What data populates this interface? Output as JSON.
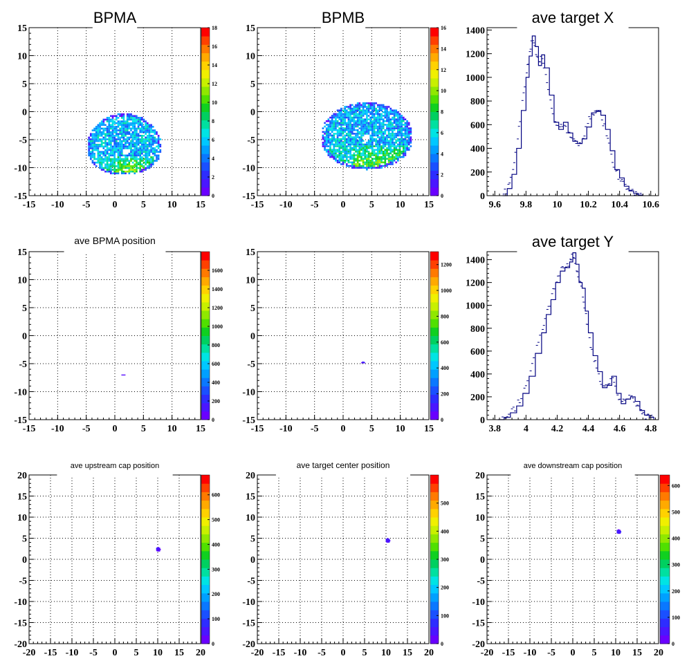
{
  "chart_data": [
    {
      "id": "bpma",
      "type": "heatmap",
      "title": "BPMA",
      "xlim": [
        -15,
        15
      ],
      "ylim": [
        -15,
        15
      ],
      "xticks": [
        -15,
        -10,
        -5,
        0,
        5,
        10,
        15
      ],
      "yticks": [
        -15,
        -10,
        -5,
        0,
        5,
        10,
        15
      ],
      "zlim": [
        0,
        18
      ],
      "zticks": [
        0,
        2,
        4,
        6,
        8,
        10,
        12,
        14,
        16,
        18
      ],
      "grid": true,
      "blob": {
        "shape": "dome",
        "cx": 1.5,
        "cy": -6.5,
        "rx": 6.5,
        "ry_top": 6.0,
        "ry_bottom": 5.0,
        "hole": [
          1.8,
          -7.3
        ]
      }
    },
    {
      "id": "bpmb",
      "type": "heatmap",
      "title": "BPMB",
      "xlim": [
        -15,
        15
      ],
      "ylim": [
        -15,
        15
      ],
      "xticks": [
        -15,
        -10,
        -5,
        0,
        5,
        10,
        15
      ],
      "yticks": [
        -15,
        -10,
        -5,
        0,
        5,
        10,
        15
      ],
      "zlim": [
        0,
        16
      ],
      "zticks": [
        0,
        2,
        4,
        6,
        8,
        10,
        12,
        14,
        16
      ],
      "grid": true,
      "blob": {
        "shape": "dome",
        "cx": 4.0,
        "cy": -4.5,
        "rx": 8.0,
        "ry_top": 6.0,
        "ry_bottom": 6.0,
        "hole": [
          3.8,
          -4.9
        ]
      }
    },
    {
      "id": "target-x",
      "type": "histogram",
      "title": "ave target X",
      "xlim": [
        9.55,
        10.65
      ],
      "ylim": [
        0,
        1420
      ],
      "xticks": [
        9.6,
        9.8,
        10,
        10.2,
        10.4,
        10.6
      ],
      "xtick_labels": [
        "9.6",
        "9.8",
        "10",
        "10.2",
        "10.4",
        "10.6"
      ],
      "yticks": [
        0,
        200,
        400,
        600,
        800,
        1000,
        1200,
        1400
      ],
      "points": [
        [
          9.65,
          0
        ],
        [
          9.68,
          60
        ],
        [
          9.71,
          180
        ],
        [
          9.74,
          400
        ],
        [
          9.77,
          720
        ],
        [
          9.8,
          1000
        ],
        [
          9.82,
          1180
        ],
        [
          9.84,
          1350
        ],
        [
          9.86,
          1260
        ],
        [
          9.88,
          1100
        ],
        [
          9.9,
          1190
        ],
        [
          9.92,
          1080
        ],
        [
          9.95,
          850
        ],
        [
          9.98,
          620
        ],
        [
          10.01,
          560
        ],
        [
          10.04,
          620
        ],
        [
          10.07,
          530
        ],
        [
          10.1,
          460
        ],
        [
          10.13,
          440
        ],
        [
          10.16,
          480
        ],
        [
          10.19,
          580
        ],
        [
          10.22,
          700
        ],
        [
          10.25,
          720
        ],
        [
          10.28,
          680
        ],
        [
          10.31,
          560
        ],
        [
          10.34,
          380
        ],
        [
          10.37,
          220
        ],
        [
          10.4,
          150
        ],
        [
          10.43,
          80
        ],
        [
          10.46,
          40
        ],
        [
          10.49,
          20
        ],
        [
          10.52,
          5
        ],
        [
          10.55,
          0
        ]
      ]
    },
    {
      "id": "bpma-pos",
      "type": "heatmap",
      "title": "ave BPMA position",
      "xlim": [
        -15,
        15
      ],
      "ylim": [
        -15,
        15
      ],
      "xticks": [
        -15,
        -10,
        -5,
        0,
        5,
        10,
        15
      ],
      "yticks": [
        -15,
        -10,
        -5,
        0,
        5,
        10,
        15
      ],
      "zlim": [
        0,
        1800
      ],
      "zticks": [
        0,
        200,
        400,
        600,
        800,
        1000,
        1200,
        1400,
        1600
      ],
      "zlabels": [
        "0",
        "200",
        "400",
        "600",
        "800",
        "1000",
        "1200",
        "1400",
        "1600"
      ],
      "grid": true,
      "blob": {
        "shape": "spot",
        "cx": 1.4,
        "cy": -7.1,
        "rx": 0.4,
        "ry_top": 0.12,
        "ry_bottom": 0.12
      }
    },
    {
      "id": "bpmb-pos",
      "type": "heatmap",
      "title": "",
      "xlim": [
        -15,
        15
      ],
      "ylim": [
        -15,
        15
      ],
      "xticks": [
        -15,
        -10,
        -5,
        0,
        5,
        10,
        15
      ],
      "yticks": [
        -15,
        -10,
        -5,
        0,
        5,
        10,
        15
      ],
      "zlim": [
        0,
        1300
      ],
      "zticks": [
        0,
        200,
        400,
        600,
        800,
        1000,
        1200
      ],
      "zlabels": [
        "0",
        "200",
        "400",
        "600",
        "800",
        "1000",
        "1200"
      ],
      "grid": true,
      "blob": {
        "shape": "spot",
        "cx": 3.4,
        "cy": -4.9,
        "rx": 0.4,
        "ry_top": 0.15,
        "ry_bottom": 0.15
      }
    },
    {
      "id": "target-y",
      "type": "histogram",
      "title": "ave target Y",
      "xlim": [
        3.75,
        4.85
      ],
      "ylim": [
        0,
        1470
      ],
      "xticks": [
        3.8,
        4,
        4.2,
        4.4,
        4.6,
        4.8
      ],
      "xtick_labels": [
        "3.8",
        "4",
        "4.2",
        "4.4",
        "4.6",
        "4.8"
      ],
      "yticks": [
        0,
        200,
        400,
        600,
        800,
        1000,
        1200,
        1400
      ],
      "points": [
        [
          3.82,
          0
        ],
        [
          3.86,
          20
        ],
        [
          3.9,
          60
        ],
        [
          3.94,
          120
        ],
        [
          3.98,
          230
        ],
        [
          4.02,
          380
        ],
        [
          4.06,
          580
        ],
        [
          4.1,
          760
        ],
        [
          4.13,
          920
        ],
        [
          4.16,
          1050
        ],
        [
          4.19,
          1200
        ],
        [
          4.22,
          1300
        ],
        [
          4.25,
          1330
        ],
        [
          4.28,
          1380
        ],
        [
          4.3,
          1460
        ],
        [
          4.32,
          1360
        ],
        [
          4.34,
          1200
        ],
        [
          4.36,
          1150
        ],
        [
          4.38,
          950
        ],
        [
          4.4,
          760
        ],
        [
          4.43,
          560
        ],
        [
          4.46,
          420
        ],
        [
          4.49,
          280
        ],
        [
          4.52,
          300
        ],
        [
          4.55,
          380
        ],
        [
          4.58,
          230
        ],
        [
          4.61,
          140
        ],
        [
          4.64,
          180
        ],
        [
          4.67,
          200
        ],
        [
          4.7,
          160
        ],
        [
          4.73,
          80
        ],
        [
          4.76,
          40
        ],
        [
          4.79,
          20
        ],
        [
          4.82,
          0
        ]
      ]
    },
    {
      "id": "upstream-cap",
      "type": "heatmap",
      "title": "ave upstream cap position",
      "xlim": [
        -20,
        20
      ],
      "ylim": [
        -20,
        20
      ],
      "xticks": [
        -20,
        -15,
        -10,
        -5,
        0,
        5,
        10,
        15,
        20
      ],
      "yticks": [
        -20,
        -15,
        -10,
        -5,
        0,
        5,
        10,
        15,
        20
      ],
      "zlim": [
        0,
        680
      ],
      "zticks": [
        0,
        100,
        200,
        300,
        400,
        500,
        600
      ],
      "grid": true,
      "blob": {
        "shape": "spot",
        "cx": 10.0,
        "cy": 2.3,
        "rx": 0.5,
        "ry_top": 0.5,
        "ry_bottom": 0.5
      }
    },
    {
      "id": "target-center",
      "type": "heatmap",
      "title": "ave target center  position",
      "xlim": [
        -20,
        20
      ],
      "ylim": [
        -20,
        20
      ],
      "xticks": [
        -20,
        -15,
        -10,
        -5,
        0,
        5,
        10,
        15,
        20
      ],
      "yticks": [
        -20,
        -15,
        -10,
        -5,
        0,
        5,
        10,
        15,
        20
      ],
      "zlim": [
        0,
        600
      ],
      "zticks": [
        0,
        100,
        200,
        300,
        400,
        500
      ],
      "grid": true,
      "blob": {
        "shape": "spot",
        "cx": 10.3,
        "cy": 4.4,
        "rx": 0.5,
        "ry_top": 0.5,
        "ry_bottom": 0.5
      }
    },
    {
      "id": "downstream-cap",
      "type": "heatmap",
      "title": "ave downstream cap position",
      "xlim": [
        -20,
        20
      ],
      "ylim": [
        -20,
        20
      ],
      "xticks": [
        -20,
        -15,
        -10,
        -5,
        0,
        5,
        10,
        15,
        20
      ],
      "yticks": [
        -20,
        -15,
        -10,
        -5,
        0,
        5,
        10,
        15,
        20
      ],
      "zlim": [
        0,
        640
      ],
      "zticks": [
        0,
        100,
        200,
        300,
        400,
        500,
        600
      ],
      "grid": true,
      "blob": {
        "shape": "spot",
        "cx": 10.6,
        "cy": 6.5,
        "rx": 0.5,
        "ry_top": 0.5,
        "ry_bottom": 0.5
      }
    }
  ]
}
